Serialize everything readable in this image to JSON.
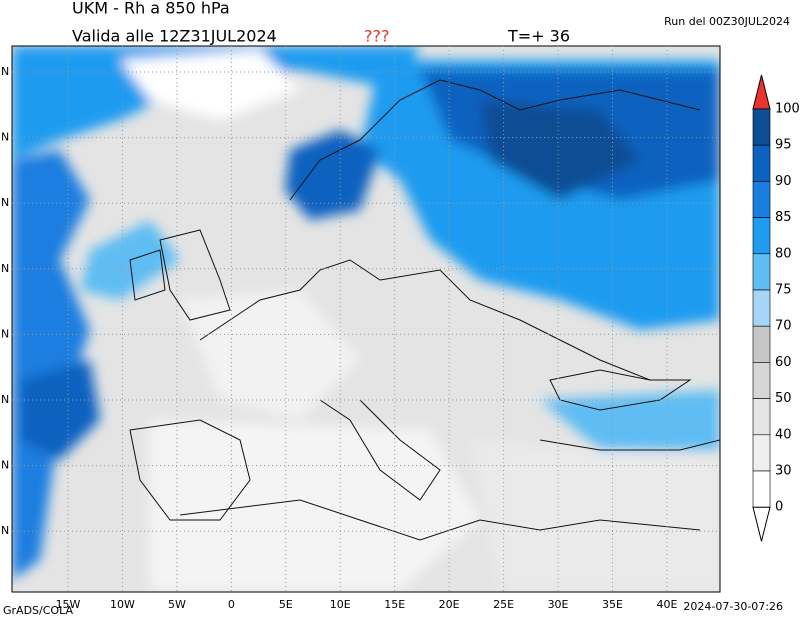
{
  "header": {
    "title": "UKM - Rh a 850 hPa",
    "valid": "Valida alle 12Z31JUL2024",
    "flag": "???",
    "lead": "T=+ 36",
    "run": "Run del 00Z30JUL2024"
  },
  "map": {
    "lon_labels": [
      "15W",
      "10W",
      "5W",
      "0",
      "5E",
      "10E",
      "15E",
      "20E",
      "25E",
      "30E",
      "35E",
      "40E"
    ],
    "lat_labels": [
      "N",
      "N",
      "N",
      "N",
      "N",
      "N",
      "N",
      "N"
    ]
  },
  "legend": {
    "labels": [
      "100",
      "95",
      "90",
      "85",
      "80",
      "75",
      "70",
      "60",
      "50",
      "40",
      "30",
      "0"
    ],
    "colors": [
      "#0b4e94",
      "#0c62c0",
      "#1a7ee0",
      "#1f9bf0",
      "#5fbdf3",
      "#a6d6f5",
      "#c6c6c6",
      "#d6d6d6",
      "#e4e4e4",
      "#efefef",
      "#ffffff"
    ],
    "over_color": "#e8342c",
    "under_color": "#ffffff"
  },
  "footer": {
    "left": "GrADS/COLA",
    "right": "2024-07-30-07:26"
  }
}
